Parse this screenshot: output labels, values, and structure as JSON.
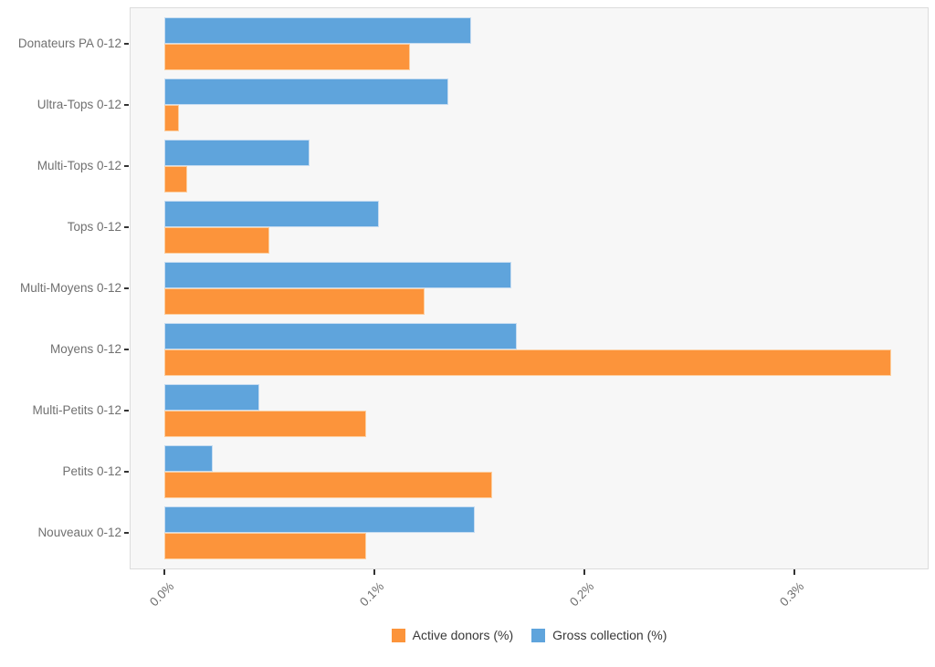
{
  "figure": {
    "background": "#FFFFFF",
    "panel_background": "#F7F7F7",
    "panel_border": "#DCDCDC",
    "axis_text_color": "#707070",
    "tick_color": "#333333",
    "legend_text_color": "#383838"
  },
  "chart_data": {
    "type": "bar",
    "orientation": "horizontal",
    "title": "",
    "xlabel": "",
    "ylabel": "",
    "categories": [
      "Donateurs PA 0-12",
      "Ultra-Tops 0-12",
      "Multi-Tops 0-12",
      "Tops 0-12",
      "Multi-Moyens 0-12",
      "Moyens 0-12",
      "Multi-Petits 0-12",
      "Petits 0-12",
      "Nouveaux 0-12"
    ],
    "series": [
      {
        "name": "Active donors (%)",
        "color": "#FC943B",
        "border_color": "#FDCFA0",
        "values": [
          0.117,
          0.007,
          0.011,
          0.05,
          0.124,
          0.346,
          0.096,
          0.156,
          0.096
        ]
      },
      {
        "name": "Gross collection (%)",
        "color": "#5FA4DC",
        "border_color": "#C6DCF1",
        "values": [
          0.146,
          0.135,
          0.069,
          0.102,
          0.165,
          0.168,
          0.045,
          0.023,
          0.148
        ]
      }
    ],
    "bar_order_in_group_top_to_bottom": [
      "Gross collection (%)",
      "Active donors (%)"
    ],
    "x_tick_labels": [
      "0.0%",
      "0.1%",
      "0.2%",
      "0.3%"
    ],
    "x_tick_values": [
      0,
      0.1,
      0.2,
      0.3
    ],
    "xlim": [
      0,
      0.3633
    ],
    "value_unit": "percent",
    "grid": false,
    "legend_position": "bottom-center"
  }
}
